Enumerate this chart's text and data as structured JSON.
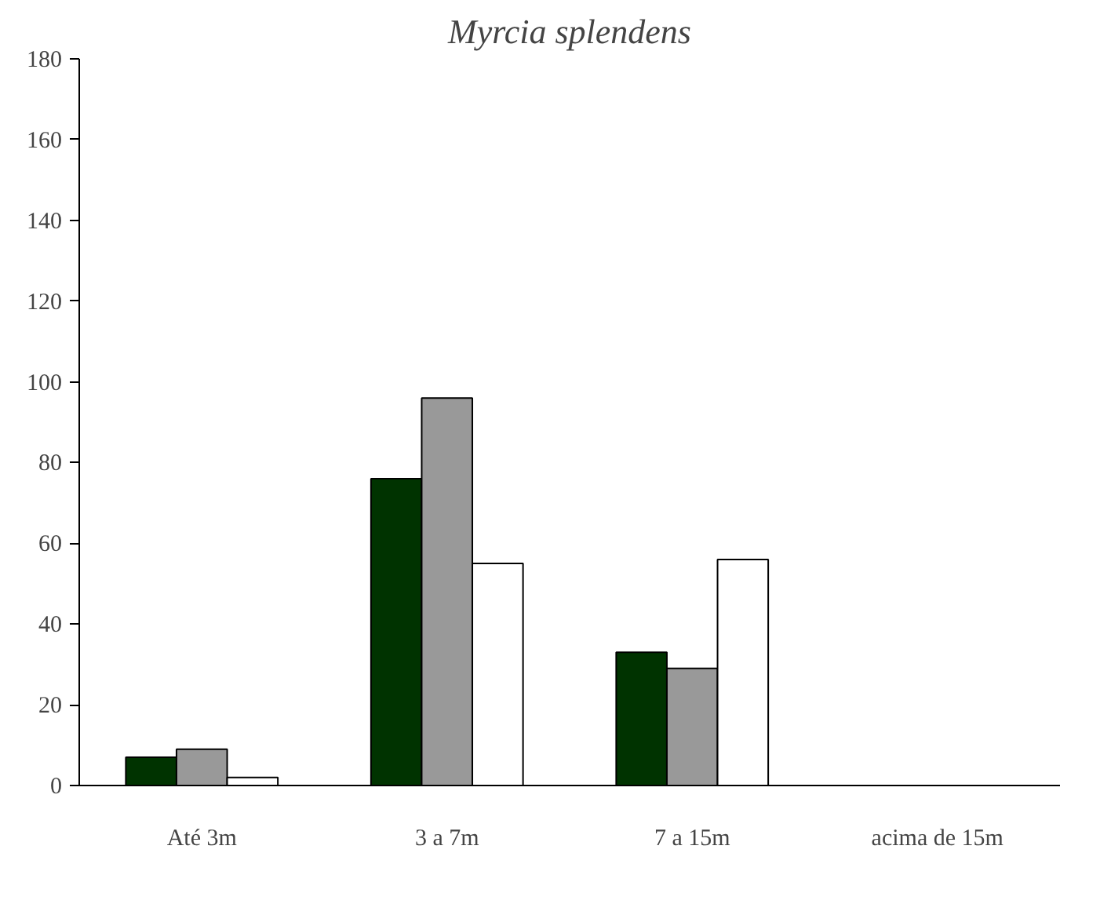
{
  "chart_data": {
    "type": "bar",
    "title": "Myrcia splendens",
    "categories": [
      "Até 3m",
      "3 a 7m",
      "7 a 15m",
      "acima de 15m"
    ],
    "series": [
      {
        "color": "#003300",
        "values": [
          7,
          76,
          33,
          null
        ]
      },
      {
        "color": "#999999",
        "values": [
          9,
          96,
          29,
          null
        ]
      },
      {
        "color": "#ffffff",
        "values": [
          2,
          55,
          56,
          null
        ]
      }
    ],
    "ylim": [
      0,
      180
    ],
    "yticks": [
      0,
      20,
      40,
      60,
      80,
      100,
      120,
      140,
      160,
      180
    ],
    "grid": false
  }
}
